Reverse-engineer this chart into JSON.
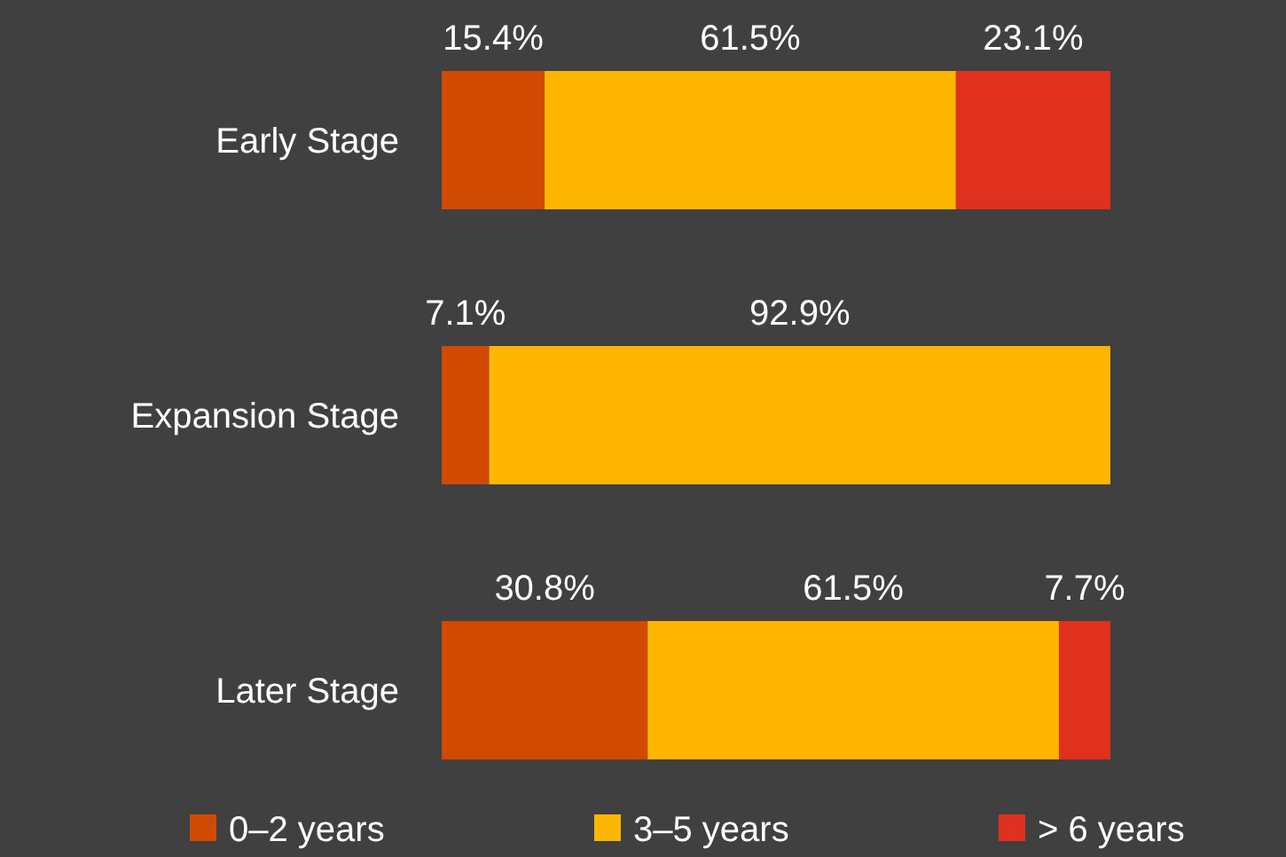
{
  "chart_data": {
    "type": "bar",
    "orientation": "horizontal",
    "stacked": true,
    "categories": [
      "Early Stage",
      "Expansion Stage",
      "Later Stage"
    ],
    "xlim": [
      0,
      100
    ],
    "tick_labels": "y",
    "legend": "bottom",
    "series": [
      {
        "name": "0–2 years",
        "color": "#d04a02",
        "values": [
          15.4,
          7.1,
          30.8
        ],
        "value_labels": [
          "15.4%",
          "7.1%",
          "30.8%"
        ]
      },
      {
        "name": "3–5 years",
        "color": "#ffb600",
        "values": [
          61.5,
          92.9,
          61.5
        ],
        "value_labels": [
          "61.5%",
          "92.9%",
          "61.5%"
        ]
      },
      {
        "name": "> 6 years",
        "color": "#e0301e",
        "values": [
          23.1,
          null,
          7.7
        ],
        "value_labels": [
          "23.1%",
          null,
          "7.7%"
        ]
      }
    ]
  }
}
